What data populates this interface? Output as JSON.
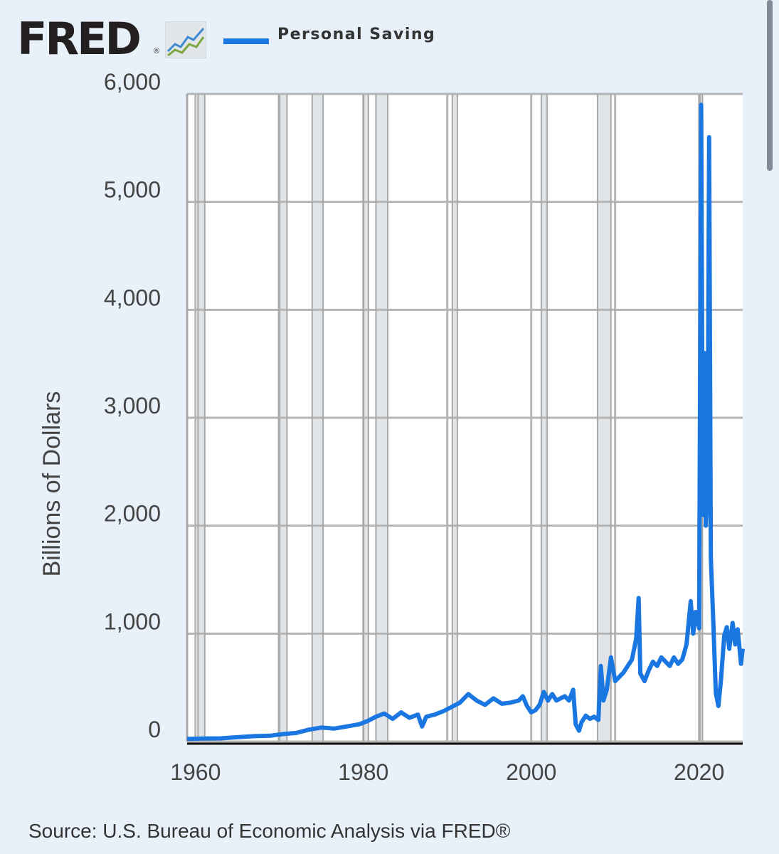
{
  "logo": {
    "text": "FRED",
    "mark": "®"
  },
  "legend": {
    "label": "Personal Saving",
    "color": "#1a76e0"
  },
  "source": "Source: U.S. Bureau of Economic Analysis via FRED®",
  "chart_data": {
    "type": "line",
    "title": "",
    "xlabel": "",
    "ylabel": "Billions of Dollars",
    "xlim": [
      1959,
      2025.2
    ],
    "ylim": [
      0,
      6000
    ],
    "y_ticks": [
      {
        "value": 0,
        "label": "0"
      },
      {
        "value": 1000,
        "label": "1,000"
      },
      {
        "value": 2000,
        "label": "2,000"
      },
      {
        "value": 3000,
        "label": "3,000"
      },
      {
        "value": 4000,
        "label": "4,000"
      },
      {
        "value": 5000,
        "label": "5,000"
      },
      {
        "value": 6000,
        "label": "6,000"
      }
    ],
    "x_ticks": [
      {
        "value": 1960,
        "label": "1960"
      },
      {
        "value": 1980,
        "label": "1980"
      },
      {
        "value": 2000,
        "label": "2000"
      },
      {
        "value": 2020,
        "label": "2020"
      }
    ],
    "recessions": [
      [
        1960.3,
        1961.1
      ],
      [
        1969.9,
        1970.9
      ],
      [
        1973.9,
        1975.2
      ],
      [
        1980.0,
        1980.6
      ],
      [
        1981.5,
        1982.9
      ],
      [
        1990.6,
        1991.2
      ],
      [
        2001.2,
        2001.9
      ],
      [
        2007.9,
        2009.5
      ],
      [
        2020.1,
        2020.4
      ]
    ],
    "series": [
      {
        "name": "Personal Saving",
        "color": "#1a76e0",
        "points": [
          [
            1959.0,
            25
          ],
          [
            1961.0,
            28
          ],
          [
            1963.0,
            30
          ],
          [
            1965.0,
            40
          ],
          [
            1967.0,
            50
          ],
          [
            1969.0,
            55
          ],
          [
            1970.5,
            70
          ],
          [
            1972.0,
            80
          ],
          [
            1973.5,
            110
          ],
          [
            1975.0,
            130
          ],
          [
            1976.5,
            120
          ],
          [
            1978.0,
            140
          ],
          [
            1979.5,
            160
          ],
          [
            1980.5,
            190
          ],
          [
            1981.5,
            230
          ],
          [
            1982.5,
            260
          ],
          [
            1983.5,
            210
          ],
          [
            1984.5,
            270
          ],
          [
            1985.5,
            220
          ],
          [
            1986.5,
            250
          ],
          [
            1987.0,
            140
          ],
          [
            1987.5,
            230
          ],
          [
            1988.5,
            250
          ],
          [
            1989.5,
            280
          ],
          [
            1990.5,
            320
          ],
          [
            1991.5,
            360
          ],
          [
            1992.5,
            440
          ],
          [
            1993.5,
            380
          ],
          [
            1994.5,
            340
          ],
          [
            1995.5,
            400
          ],
          [
            1996.5,
            350
          ],
          [
            1997.5,
            360
          ],
          [
            1998.5,
            380
          ],
          [
            1999.0,
            420
          ],
          [
            1999.5,
            330
          ],
          [
            2000.0,
            270
          ],
          [
            2000.5,
            290
          ],
          [
            2001.0,
            340
          ],
          [
            2001.5,
            460
          ],
          [
            2002.0,
            380
          ],
          [
            2002.5,
            440
          ],
          [
            2003.0,
            380
          ],
          [
            2003.5,
            400
          ],
          [
            2004.0,
            420
          ],
          [
            2004.5,
            380
          ],
          [
            2005.0,
            480
          ],
          [
            2005.3,
            160
          ],
          [
            2005.7,
            100
          ],
          [
            2006.0,
            180
          ],
          [
            2006.5,
            240
          ],
          [
            2007.0,
            210
          ],
          [
            2007.5,
            230
          ],
          [
            2008.0,
            200
          ],
          [
            2008.3,
            700
          ],
          [
            2008.6,
            380
          ],
          [
            2009.0,
            480
          ],
          [
            2009.5,
            780
          ],
          [
            2010.0,
            560
          ],
          [
            2010.5,
            600
          ],
          [
            2011.0,
            640
          ],
          [
            2011.5,
            700
          ],
          [
            2012.0,
            760
          ],
          [
            2012.5,
            950
          ],
          [
            2012.8,
            1330
          ],
          [
            2013.0,
            630
          ],
          [
            2013.5,
            560
          ],
          [
            2014.0,
            660
          ],
          [
            2014.5,
            740
          ],
          [
            2015.0,
            700
          ],
          [
            2015.5,
            780
          ],
          [
            2016.0,
            740
          ],
          [
            2016.5,
            700
          ],
          [
            2017.0,
            780
          ],
          [
            2017.5,
            720
          ],
          [
            2018.0,
            760
          ],
          [
            2018.5,
            900
          ],
          [
            2019.0,
            1300
          ],
          [
            2019.3,
            1000
          ],
          [
            2019.6,
            1200
          ],
          [
            2020.0,
            1050
          ],
          [
            2020.25,
            5900
          ],
          [
            2020.45,
            2100
          ],
          [
            2020.65,
            3600
          ],
          [
            2020.8,
            2000
          ],
          [
            2021.0,
            2300
          ],
          [
            2021.2,
            5600
          ],
          [
            2021.4,
            1700
          ],
          [
            2021.7,
            1100
          ],
          [
            2022.0,
            450
          ],
          [
            2022.3,
            330
          ],
          [
            2022.6,
            560
          ],
          [
            2023.0,
            980
          ],
          [
            2023.3,
            1060
          ],
          [
            2023.6,
            860
          ],
          [
            2024.0,
            1100
          ],
          [
            2024.3,
            900
          ],
          [
            2024.6,
            1040
          ],
          [
            2025.0,
            720
          ],
          [
            2025.2,
            860
          ]
        ]
      }
    ]
  }
}
